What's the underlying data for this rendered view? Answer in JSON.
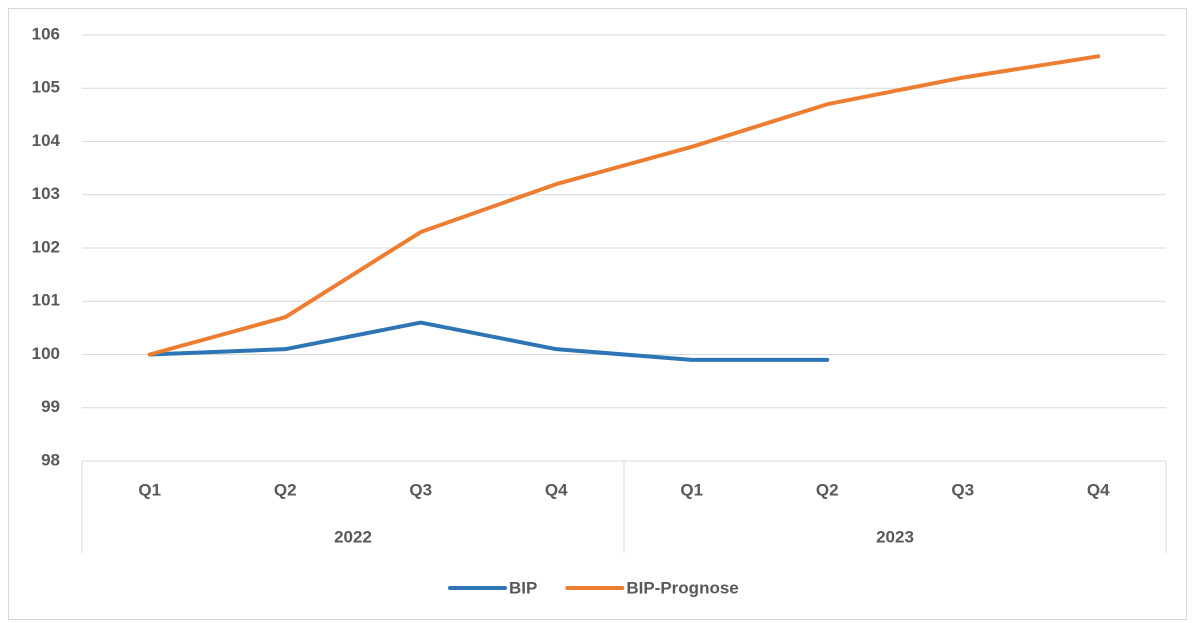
{
  "chart_data": {
    "type": "line",
    "groups": [
      {
        "label": "2022",
        "categories": [
          "Q1",
          "Q2",
          "Q3",
          "Q4"
        ]
      },
      {
        "label": "2023",
        "categories": [
          "Q1",
          "Q2",
          "Q3",
          "Q4"
        ]
      }
    ],
    "series": [
      {
        "name": "BIP",
        "color": "#2e75b6",
        "values": [
          100,
          100.1,
          100.6,
          100.1,
          99.9,
          99.9,
          null,
          null
        ]
      },
      {
        "name": "BIP-Prognose",
        "color": "#ed7d31",
        "values": [
          100,
          100.7,
          102.3,
          103.2,
          103.9,
          104.7,
          105.2,
          105.6
        ]
      }
    ],
    "ylim": [
      98,
      106
    ],
    "yticks": [
      98,
      99,
      100,
      101,
      102,
      103,
      104,
      105,
      106
    ],
    "grid": true,
    "legend": "bottom"
  }
}
